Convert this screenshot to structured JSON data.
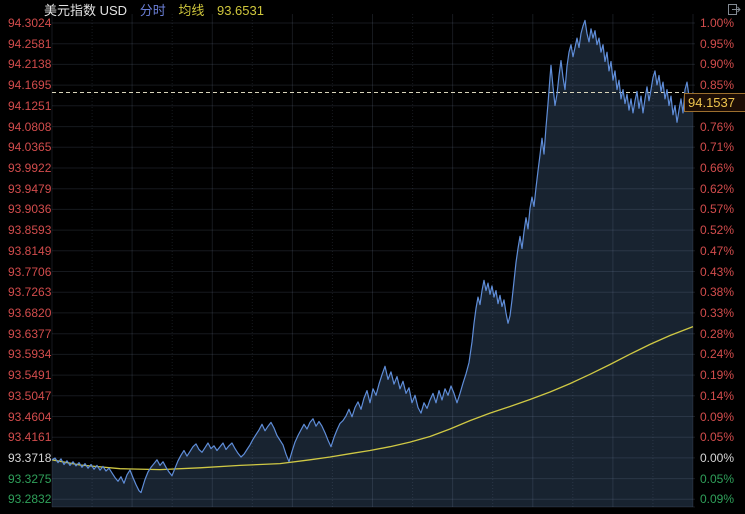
{
  "header": {
    "title": "美元指数 USD",
    "period_label": "分时",
    "ma_label": "均线",
    "ma_value": "93.6531"
  },
  "price_box": {
    "value": "94.1537"
  },
  "chart_data": {
    "type": "line",
    "title": "美元指数 USD 分时",
    "legend": [
      {
        "name": "分时价格线",
        "color": "#5f8dd8"
      },
      {
        "name": "均线",
        "color": "#cfc844"
      }
    ],
    "grid": true,
    "legend_position": "none",
    "current_price": 94.1537,
    "prev_close": 93.3718,
    "ma_last_value": 93.6531,
    "y_axis_left": {
      "labels": [
        "94.3024",
        "94.2581",
        "94.2138",
        "94.1695",
        "94.1251",
        "94.0808",
        "94.0365",
        "93.9922",
        "93.9479",
        "93.9036",
        "93.8593",
        "93.8149",
        "93.7706",
        "93.7263",
        "93.6820",
        "93.6377",
        "93.5934",
        "93.5491",
        "93.5047",
        "93.4604",
        "93.4161",
        "93.3718",
        "93.3275",
        "93.2832"
      ],
      "states": [
        "up",
        "up",
        "up",
        "up",
        "up",
        "up",
        "up",
        "up",
        "up",
        "up",
        "up",
        "up",
        "up",
        "up",
        "up",
        "up",
        "up",
        "up",
        "up",
        "up",
        "up",
        "flat",
        "down",
        "down"
      ]
    },
    "y_axis_right": {
      "labels": [
        "1.00%",
        "0.95%",
        "0.90%",
        "0.85%",
        "",
        "0.76%",
        "0.71%",
        "0.66%",
        "0.62%",
        "0.57%",
        "0.52%",
        "0.47%",
        "0.43%",
        "0.38%",
        "0.33%",
        "0.28%",
        "0.24%",
        "0.19%",
        "0.14%",
        "0.09%",
        "0.05%",
        "0.00%",
        "0.05%",
        "0.09%"
      ],
      "states": [
        "up",
        "up",
        "up",
        "up",
        "up",
        "up",
        "up",
        "up",
        "up",
        "up",
        "up",
        "up",
        "up",
        "up",
        "up",
        "up",
        "up",
        "up",
        "up",
        "up",
        "up",
        "flat",
        "down",
        "down"
      ]
    },
    "colors": {
      "up": "#d24c4c",
      "down": "#2fa05a",
      "flat": "#d6d6d6",
      "price_line": "#5f8dd8",
      "area_fill": "#182330",
      "ma_line": "#cfc844",
      "dashed_price_line": "#d8d4ba",
      "grid_line": "rgba(150,170,200,0.15)",
      "box_border": "#9c6f2e",
      "box_text": "#eec44e",
      "background": "#000000"
    },
    "series": [
      {
        "name": "price",
        "x_unit": "px",
        "points": [
          [
            52,
            93.368
          ],
          [
            55,
            93.372
          ],
          [
            58,
            93.362
          ],
          [
            61,
            93.37
          ],
          [
            64,
            93.358
          ],
          [
            67,
            93.366
          ],
          [
            70,
            93.356
          ],
          [
            73,
            93.364
          ],
          [
            76,
            93.355
          ],
          [
            79,
            93.362
          ],
          [
            82,
            93.352
          ],
          [
            85,
            93.36
          ],
          [
            88,
            93.35
          ],
          [
            91,
            93.358
          ],
          [
            94,
            93.348
          ],
          [
            97,
            93.356
          ],
          [
            100,
            93.346
          ],
          [
            103,
            93.354
          ],
          [
            106,
            93.344
          ],
          [
            109,
            93.35
          ],
          [
            112,
            93.34
          ],
          [
            115,
            93.33
          ],
          [
            118,
            93.322
          ],
          [
            121,
            93.332
          ],
          [
            124,
            93.318
          ],
          [
            127,
            93.336
          ],
          [
            130,
            93.346
          ],
          [
            133,
            93.33
          ],
          [
            136,
            93.315
          ],
          [
            139,
            93.302
          ],
          [
            141,
            93.298
          ],
          [
            143,
            93.312
          ],
          [
            145,
            93.326
          ],
          [
            148,
            93.342
          ],
          [
            151,
            93.352
          ],
          [
            154,
            93.36
          ],
          [
            157,
            93.368
          ],
          [
            160,
            93.356
          ],
          [
            163,
            93.364
          ],
          [
            166,
            93.352
          ],
          [
            169,
            93.342
          ],
          [
            172,
            93.334
          ],
          [
            175,
            93.35
          ],
          [
            178,
            93.366
          ],
          [
            181,
            93.378
          ],
          [
            184,
            93.388
          ],
          [
            187,
            93.376
          ],
          [
            190,
            93.386
          ],
          [
            193,
            93.396
          ],
          [
            196,
            93.402
          ],
          [
            199,
            93.39
          ],
          [
            202,
            93.384
          ],
          [
            205,
            93.394
          ],
          [
            208,
            93.404
          ],
          [
            211,
            93.392
          ],
          [
            214,
            93.398
          ],
          [
            217,
            93.388
          ],
          [
            220,
            93.396
          ],
          [
            223,
            93.404
          ],
          [
            226,
            93.39
          ],
          [
            229,
            93.398
          ],
          [
            232,
            93.404
          ],
          [
            235,
            93.392
          ],
          [
            238,
            93.382
          ],
          [
            241,
            93.374
          ],
          [
            244,
            93.38
          ],
          [
            247,
            93.39
          ],
          [
            250,
            93.4
          ],
          [
            253,
            93.412
          ],
          [
            256,
            93.422
          ],
          [
            259,
            93.432
          ],
          [
            262,
            93.444
          ],
          [
            265,
            93.43
          ],
          [
            268,
            93.44
          ],
          [
            271,
            93.448
          ],
          [
            274,
            93.436
          ],
          [
            277,
            93.42
          ],
          [
            280,
            93.41
          ],
          [
            283,
            93.4
          ],
          [
            286,
            93.38
          ],
          [
            289,
            93.364
          ],
          [
            292,
            93.386
          ],
          [
            295,
            93.406
          ],
          [
            298,
            93.42
          ],
          [
            301,
            93.432
          ],
          [
            304,
            93.444
          ],
          [
            307,
            93.434
          ],
          [
            310,
            93.448
          ],
          [
            313,
            93.456
          ],
          [
            316,
            93.44
          ],
          [
            319,
            93.45
          ],
          [
            322,
            93.44
          ],
          [
            325,
            93.426
          ],
          [
            328,
            93.41
          ],
          [
            331,
            93.396
          ],
          [
            334,
            93.416
          ],
          [
            337,
            93.432
          ],
          [
            340,
            93.446
          ],
          [
            343,
            93.452
          ],
          [
            346,
            93.462
          ],
          [
            349,
            93.476
          ],
          [
            352,
            93.46
          ],
          [
            355,
            93.48
          ],
          [
            358,
            93.492
          ],
          [
            361,
            93.476
          ],
          [
            364,
            93.5
          ],
          [
            367,
            93.516
          ],
          [
            370,
            93.49
          ],
          [
            373,
            93.52
          ],
          [
            376,
            93.506
          ],
          [
            379,
            93.53
          ],
          [
            382,
            93.55
          ],
          [
            385,
            93.568
          ],
          [
            388,
            93.54
          ],
          [
            391,
            93.556
          ],
          [
            394,
            93.53
          ],
          [
            397,
            93.546
          ],
          [
            400,
            93.52
          ],
          [
            403,
            93.536
          ],
          [
            406,
            93.51
          ],
          [
            409,
            93.522
          ],
          [
            412,
            93.49
          ],
          [
            415,
            93.506
          ],
          [
            418,
            93.48
          ],
          [
            421,
            93.468
          ],
          [
            424,
            93.49
          ],
          [
            427,
            93.478
          ],
          [
            430,
            93.496
          ],
          [
            433,
            93.51
          ],
          [
            436,
            93.49
          ],
          [
            439,
            93.516
          ],
          [
            442,
            93.496
          ],
          [
            445,
            93.52
          ],
          [
            448,
            93.506
          ],
          [
            451,
            93.526
          ],
          [
            454,
            93.51
          ],
          [
            457,
            93.49
          ],
          [
            460,
            93.51
          ],
          [
            463,
            93.532
          ],
          [
            466,
            93.552
          ],
          [
            469,
            93.576
          ],
          [
            472,
            93.62
          ],
          [
            474,
            93.66
          ],
          [
            476,
            93.692
          ],
          [
            478,
            93.716
          ],
          [
            480,
            93.7
          ],
          [
            482,
            93.73
          ],
          [
            484,
            93.752
          ],
          [
            486,
            93.73
          ],
          [
            488,
            93.746
          ],
          [
            490,
            93.722
          ],
          [
            492,
            93.74
          ],
          [
            494,
            93.716
          ],
          [
            496,
            93.73
          ],
          [
            498,
            93.702
          ],
          [
            500,
            93.72
          ],
          [
            502,
            93.696
          ],
          [
            504,
            93.71
          ],
          [
            506,
            93.682
          ],
          [
            508,
            93.66
          ],
          [
            510,
            93.676
          ],
          [
            512,
            93.71
          ],
          [
            514,
            93.75
          ],
          [
            516,
            93.79
          ],
          [
            518,
            93.82
          ],
          [
            520,
            93.846
          ],
          [
            522,
            93.82
          ],
          [
            524,
            93.856
          ],
          [
            526,
            93.886
          ],
          [
            528,
            93.862
          ],
          [
            530,
            93.906
          ],
          [
            532,
            93.93
          ],
          [
            534,
            93.91
          ],
          [
            536,
            93.95
          ],
          [
            538,
            93.986
          ],
          [
            540,
            94.02
          ],
          [
            542,
            94.056
          ],
          [
            544,
            94.022
          ],
          [
            546,
            94.08
          ],
          [
            548,
            94.13
          ],
          [
            550,
            94.186
          ],
          [
            551,
            94.212
          ],
          [
            553,
            94.166
          ],
          [
            555,
            94.126
          ],
          [
            557,
            94.15
          ],
          [
            559,
            94.19
          ],
          [
            561,
            94.222
          ],
          [
            563,
            94.186
          ],
          [
            565,
            94.16
          ],
          [
            567,
            94.21
          ],
          [
            569,
            94.24
          ],
          [
            571,
            94.256
          ],
          [
            573,
            94.23
          ],
          [
            575,
            94.25
          ],
          [
            577,
            94.27
          ],
          [
            579,
            94.25
          ],
          [
            581,
            94.28
          ],
          [
            583,
            94.296
          ],
          [
            585,
            94.308
          ],
          [
            587,
            94.28
          ],
          [
            589,
            94.262
          ],
          [
            591,
            94.29
          ],
          [
            593,
            94.27
          ],
          [
            595,
            94.286
          ],
          [
            597,
            94.256
          ],
          [
            599,
            94.27
          ],
          [
            601,
            94.24
          ],
          [
            603,
            94.256
          ],
          [
            605,
            94.22
          ],
          [
            607,
            94.24
          ],
          [
            609,
            94.2
          ],
          [
            611,
            94.22
          ],
          [
            613,
            94.18
          ],
          [
            615,
            94.2
          ],
          [
            617,
            94.16
          ],
          [
            619,
            94.18
          ],
          [
            621,
            94.14
          ],
          [
            623,
            94.16
          ],
          [
            625,
            94.13
          ],
          [
            627,
            94.15
          ],
          [
            629,
            94.116
          ],
          [
            631,
            94.14
          ],
          [
            633,
            94.11
          ],
          [
            635,
            94.136
          ],
          [
            637,
            94.156
          ],
          [
            639,
            94.12
          ],
          [
            641,
            94.146
          ],
          [
            643,
            94.11
          ],
          [
            645,
            94.14
          ],
          [
            647,
            94.166
          ],
          [
            649,
            94.136
          ],
          [
            651,
            94.16
          ],
          [
            653,
            94.186
          ],
          [
            655,
            94.2
          ],
          [
            657,
            94.17
          ],
          [
            659,
            94.19
          ],
          [
            661,
            94.156
          ],
          [
            663,
            94.176
          ],
          [
            665,
            94.14
          ],
          [
            667,
            94.16
          ],
          [
            669,
            94.126
          ],
          [
            671,
            94.146
          ],
          [
            673,
            94.106
          ],
          [
            675,
            94.126
          ],
          [
            677,
            94.09
          ],
          [
            679,
            94.116
          ],
          [
            681,
            94.14
          ],
          [
            683,
            94.11
          ],
          [
            685,
            94.16
          ],
          [
            687,
            94.176
          ],
          [
            689,
            94.146
          ],
          [
            691,
            94.12
          ],
          [
            693,
            94.154
          ]
        ]
      },
      {
        "name": "MA",
        "x_unit": "px",
        "points": [
          [
            52,
            93.368
          ],
          [
            80,
            93.357
          ],
          [
            120,
            93.349
          ],
          [
            160,
            93.347
          ],
          [
            200,
            93.351
          ],
          [
            240,
            93.356
          ],
          [
            280,
            93.36
          ],
          [
            310,
            93.368
          ],
          [
            330,
            93.374
          ],
          [
            350,
            93.381
          ],
          [
            370,
            93.388
          ],
          [
            390,
            93.396
          ],
          [
            410,
            93.406
          ],
          [
            430,
            93.418
          ],
          [
            450,
            93.434
          ],
          [
            470,
            93.452
          ],
          [
            490,
            93.468
          ],
          [
            510,
            93.482
          ],
          [
            530,
            93.497
          ],
          [
            550,
            93.513
          ],
          [
            570,
            93.531
          ],
          [
            590,
            93.551
          ],
          [
            610,
            93.572
          ],
          [
            630,
            93.594
          ],
          [
            650,
            93.615
          ],
          [
            670,
            93.634
          ],
          [
            693,
            93.653
          ]
        ]
      }
    ]
  },
  "icons": {
    "top_right": "collapse-panel-icon"
  }
}
